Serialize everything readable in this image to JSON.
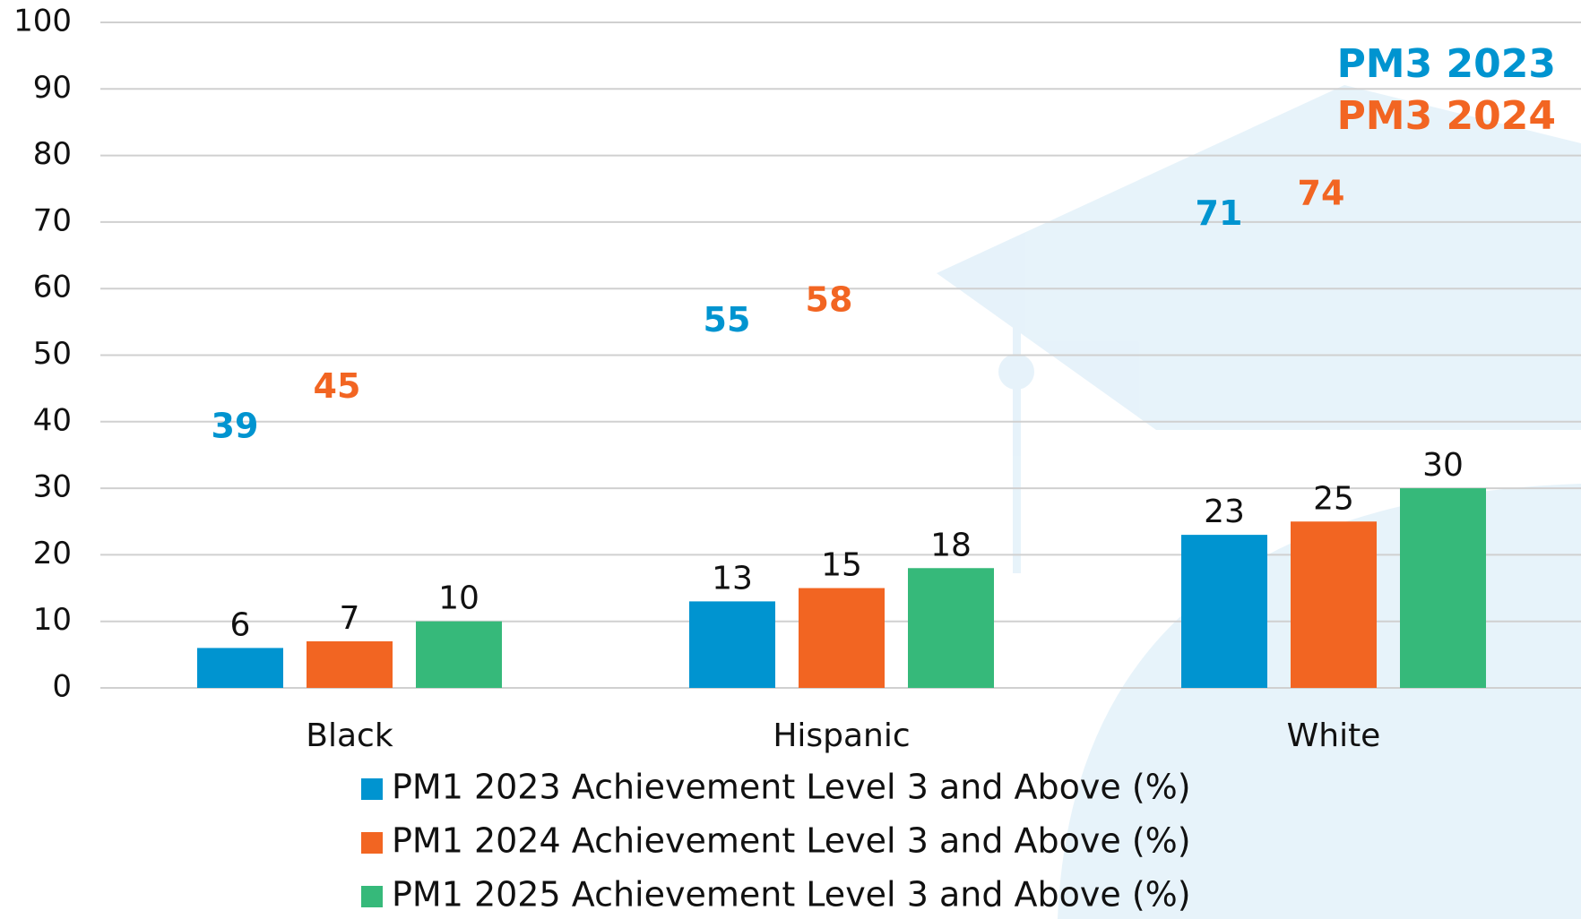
{
  "chart_data": {
    "type": "bar",
    "categories": [
      "Black",
      "Hispanic",
      "White"
    ],
    "series": [
      {
        "name": "PM1 2023 Achievement Level 3 and Above (%)",
        "color": "#0094d0",
        "values": [
          6,
          13,
          23
        ]
      },
      {
        "name": "PM1 2024 Achievement Level 3 and Above (%)",
        "color": "#f26522",
        "values": [
          7,
          15,
          25
        ]
      },
      {
        "name": "PM1 2025 Achievement Level 3 and Above (%)",
        "color": "#36b97a",
        "values": [
          10,
          18,
          30
        ]
      }
    ],
    "annotation_series": [
      {
        "name": "PM3 2023",
        "color": "#0094d0",
        "values": [
          39,
          55,
          71
        ]
      },
      {
        "name": "PM3 2024",
        "color": "#f26522",
        "values": [
          45,
          58,
          74
        ]
      }
    ],
    "ylim": [
      0,
      100
    ],
    "yticks": [
      0,
      10,
      20,
      30,
      40,
      50,
      60,
      70,
      80,
      90,
      100
    ],
    "grid": true
  }
}
